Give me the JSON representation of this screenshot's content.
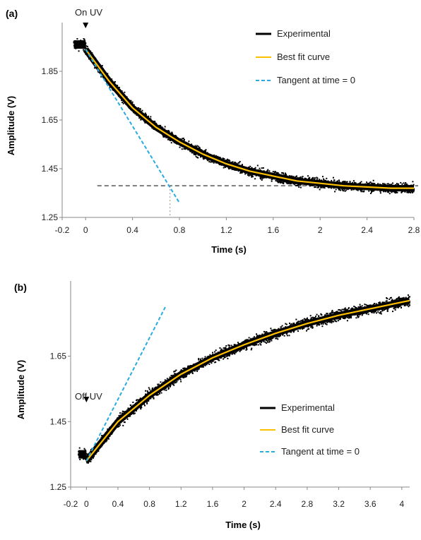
{
  "chart_data": [
    {
      "type": "scatter",
      "panel_label": "(a)",
      "annotation": "On UV",
      "xlabel": "Time (s)",
      "ylabel": "Amplitude (V)",
      "xlim": [
        -0.2,
        2.8
      ],
      "ylim": [
        1.25,
        2.05
      ],
      "x_ticks": [
        "-0.2",
        "0",
        "0.4",
        "0.8",
        "1.2",
        "1.6",
        "2",
        "2.4",
        "2.8"
      ],
      "y_ticks": [
        "1.25",
        "1.45",
        "1.65",
        "1.85"
      ],
      "legend_position": "top-right",
      "legend": [
        "Experimental",
        "Best fit curve",
        "Tangent at time = 0"
      ],
      "series": [
        {
          "name": "Experimental",
          "color": "#000000",
          "noise": 0.022,
          "baseline": 1.96,
          "x_start": -0.1,
          "x": [
            0,
            0.2,
            0.4,
            0.6,
            0.8,
            1.0,
            1.2,
            1.4,
            1.6,
            1.8,
            2.0,
            2.2,
            2.4,
            2.6,
            2.8
          ],
          "y": [
            1.94,
            1.81,
            1.7,
            1.62,
            1.56,
            1.51,
            1.47,
            1.44,
            1.42,
            1.4,
            1.39,
            1.38,
            1.375,
            1.37,
            1.37
          ]
        },
        {
          "name": "Best fit curve",
          "color": "#ffc000",
          "x": [
            0,
            0.2,
            0.4,
            0.6,
            0.8,
            1.0,
            1.2,
            1.4,
            1.6,
            1.8,
            2.0,
            2.2,
            2.4,
            2.6,
            2.8
          ],
          "y": [
            1.94,
            1.81,
            1.7,
            1.62,
            1.56,
            1.51,
            1.47,
            1.44,
            1.42,
            1.4,
            1.39,
            1.38,
            1.375,
            1.37,
            1.37
          ]
        },
        {
          "name": "Tangent at time = 0",
          "color": "#29abe2",
          "x": [
            0,
            0.8
          ],
          "y": [
            1.94,
            1.31
          ]
        }
      ],
      "reference_lines": {
        "horizontal_y": 1.38,
        "horizontal_x_from": 0.1,
        "vertical_x": 0.72
      }
    },
    {
      "type": "scatter",
      "panel_label": "(b)",
      "annotation": "Off UV",
      "xlabel": "Time (s)",
      "ylabel": "Amplitude (V)",
      "xlim": [
        -0.2,
        4.1
      ],
      "ylim": [
        1.25,
        1.88
      ],
      "x_ticks": [
        "-0.2",
        "0",
        "0.4",
        "0.8",
        "1.2",
        "1.6",
        "2",
        "2.4",
        "2.8",
        "3.2",
        "3.6",
        "4"
      ],
      "y_ticks": [
        "1.25",
        "1.45",
        "1.65"
      ],
      "legend_position": "bottom-right",
      "legend": [
        "Experimental",
        "Best fit curve",
        "Tangent at time = 0"
      ],
      "series": [
        {
          "name": "Experimental",
          "color": "#000000",
          "noise": 0.018,
          "baseline": 1.35,
          "x_start": -0.1,
          "x": [
            0,
            0.4,
            0.8,
            1.2,
            1.6,
            2.0,
            2.4,
            2.8,
            3.2,
            3.6,
            4.0,
            4.1
          ],
          "y": [
            1.33,
            1.45,
            1.53,
            1.595,
            1.645,
            1.685,
            1.72,
            1.75,
            1.775,
            1.795,
            1.815,
            1.82
          ]
        },
        {
          "name": "Best fit curve",
          "color": "#ffc000",
          "x": [
            0,
            0.4,
            0.8,
            1.2,
            1.6,
            2.0,
            2.4,
            2.8,
            3.2,
            3.6,
            4.0,
            4.1
          ],
          "y": [
            1.33,
            1.45,
            1.53,
            1.595,
            1.645,
            1.685,
            1.72,
            1.75,
            1.775,
            1.795,
            1.815,
            1.82
          ]
        },
        {
          "name": "Tangent at time = 0",
          "color": "#29abe2",
          "x": [
            0,
            1.0
          ],
          "y": [
            1.33,
            1.8
          ]
        }
      ]
    }
  ]
}
